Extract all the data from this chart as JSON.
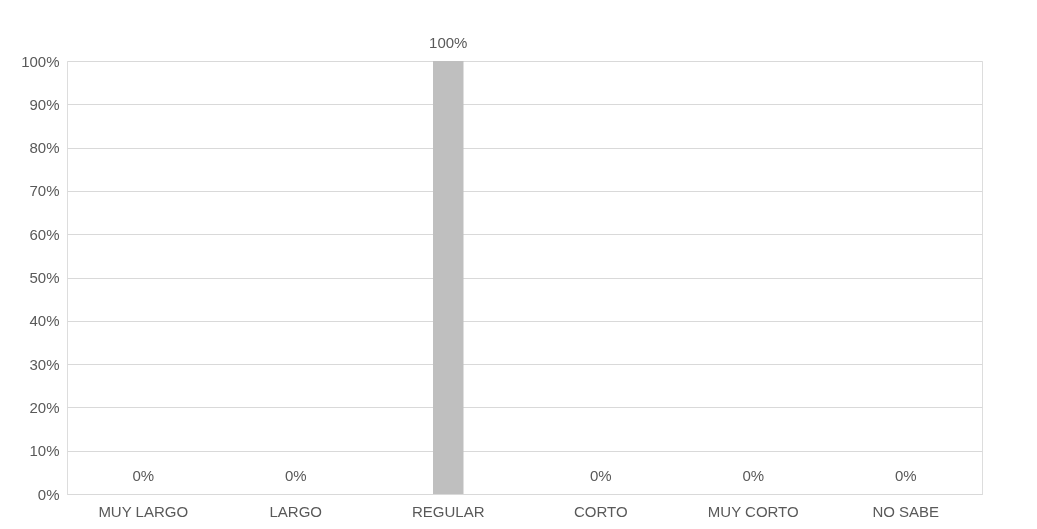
{
  "chart_data": {
    "type": "bar",
    "categories": [
      "MUY LARGO",
      "LARGO",
      "REGULAR",
      "CORTO",
      "MUY CORTO",
      "NO SABE"
    ],
    "values": [
      0,
      0,
      100,
      0,
      0,
      0
    ],
    "value_labels": [
      "0%",
      "0%",
      "100%",
      "0%",
      "0%",
      "0%"
    ],
    "color": "#bfbfbf",
    "ylim": [
      0,
      100
    ],
    "yticks": [
      {
        "value": 0,
        "label": "0%"
      },
      {
        "value": 10,
        "label": "10%"
      },
      {
        "value": 20,
        "label": "20%"
      },
      {
        "value": 30,
        "label": "30%"
      },
      {
        "value": 40,
        "label": "40%"
      },
      {
        "value": 50,
        "label": "50%"
      },
      {
        "value": 60,
        "label": "60%"
      },
      {
        "value": 70,
        "label": "70%"
      },
      {
        "value": 80,
        "label": "80%"
      },
      {
        "value": 90,
        "label": "90%"
      },
      {
        "value": 100,
        "label": "100%"
      }
    ],
    "grid": "y"
  }
}
